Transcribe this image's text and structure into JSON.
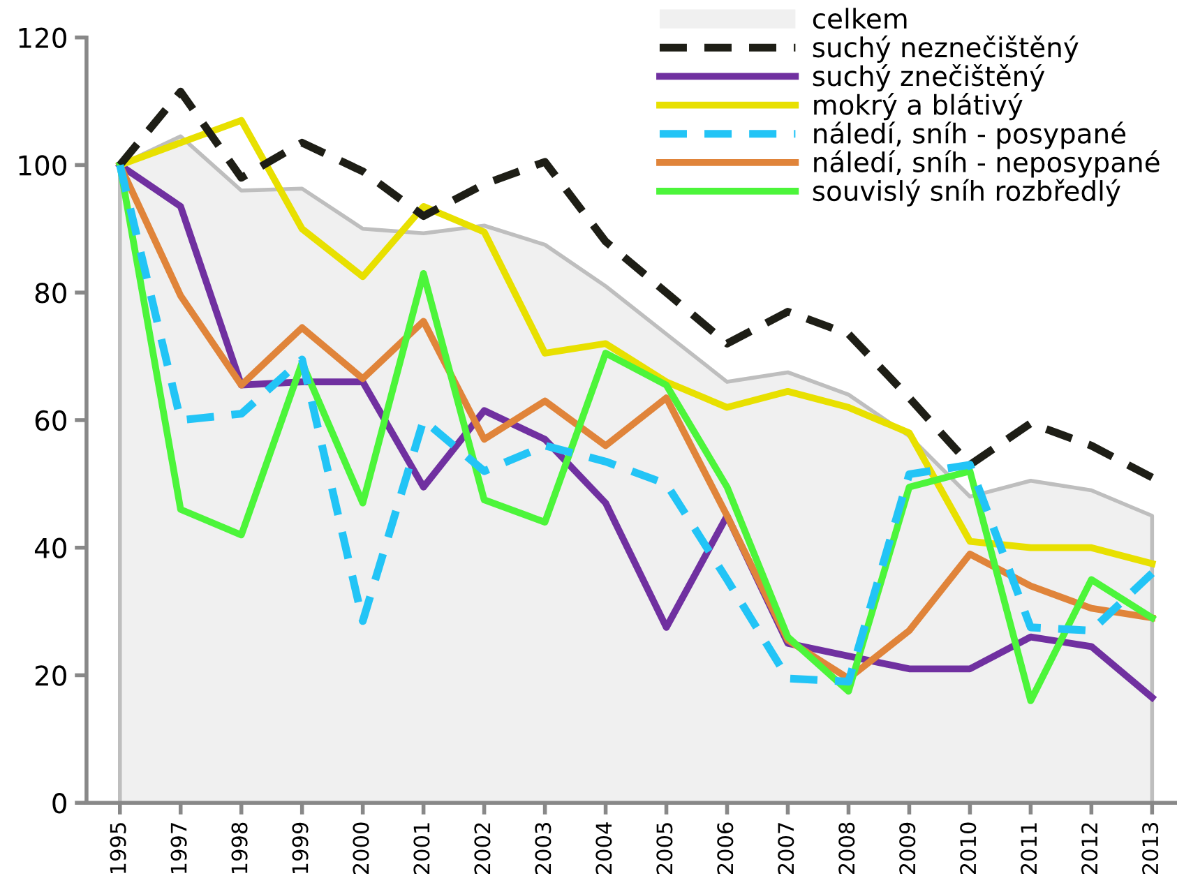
{
  "chart_data": {
    "type": "line",
    "categories": [
      "1995",
      "1997",
      "1998",
      "1999",
      "2000",
      "2001",
      "2002",
      "2003",
      "2004",
      "2005",
      "2006",
      "2007",
      "2008",
      "2009",
      "2010",
      "2011",
      "2012",
      "2013"
    ],
    "ylim": [
      0,
      120
    ],
    "yticks": [
      0,
      20,
      40,
      60,
      80,
      100,
      120
    ],
    "grid": false,
    "legend": "top right",
    "marker": "none",
    "series": [
      {
        "name": "celkem",
        "type": "area",
        "color": "#f0f0f0",
        "values": [
          100,
          104.5,
          96,
          96.3,
          90,
          89.3,
          90.5,
          87.5,
          81,
          73.5,
          66,
          67.5,
          64,
          57.5,
          48,
          50.5,
          49,
          45
        ]
      },
      {
        "name": "suchý neznečištěný",
        "color": "#1e1e16",
        "line_style": "dashed",
        "values": [
          100,
          111.5,
          98,
          103.5,
          99,
          92,
          97,
          100.5,
          88,
          80,
          72,
          77,
          73.5,
          63.5,
          53,
          59.5,
          56,
          51
        ]
      },
      {
        "name": "suchý znečištěný",
        "color": "#7030a0",
        "values": [
          100,
          93.5,
          65.5,
          66,
          66,
          49.5,
          61.5,
          57,
          47,
          27.5,
          45,
          25,
          23,
          21,
          21,
          26,
          24.5,
          16.5
        ]
      },
      {
        "name": "mokrý a blátivý",
        "color": "#e8e000",
        "values": [
          100,
          103.5,
          107,
          90,
          82.5,
          93.5,
          89.5,
          70.5,
          72,
          66,
          62,
          64.5,
          62,
          58,
          41,
          40,
          40,
          37.5
        ]
      },
      {
        "name": "náledí, sníh - posypané",
        "color": "#22c4f6",
        "line_style": "dashed",
        "values": [
          100,
          60,
          61,
          69.5,
          28.5,
          60,
          52,
          56,
          53.5,
          50,
          35,
          19.5,
          19,
          51.5,
          53,
          27.5,
          27,
          36
        ]
      },
      {
        "name": "náledí, sníh - neposypané",
        "color": "#e0843a",
        "values": [
          100,
          79.5,
          65.5,
          74.5,
          66.5,
          75.5,
          57,
          63,
          56,
          63.5,
          45,
          25.5,
          19.5,
          27,
          39,
          34,
          30.5,
          29
        ]
      },
      {
        "name": "souvislý sníh rozbředlý",
        "color": "#4cf53a",
        "values": [
          100,
          46,
          42,
          69,
          47,
          83,
          47.5,
          44,
          70.5,
          65.5,
          49.5,
          26,
          17.5,
          49.5,
          52,
          16,
          35,
          29
        ]
      }
    ]
  }
}
